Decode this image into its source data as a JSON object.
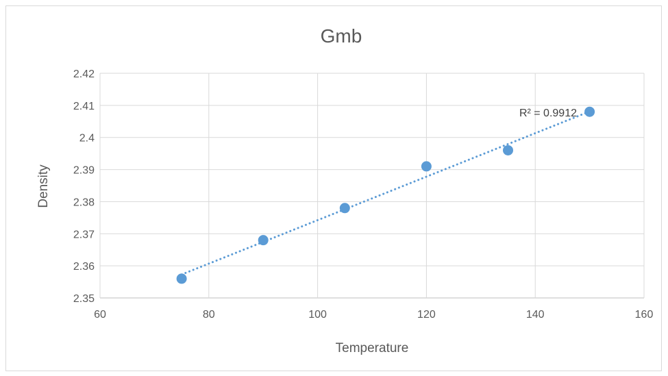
{
  "chart_data": {
    "type": "scatter",
    "title": "Gmb",
    "xlabel": "Temperature",
    "ylabel": "Density",
    "xlim": [
      60,
      160
    ],
    "ylim": [
      2.35,
      2.42
    ],
    "xticks": [
      60,
      80,
      100,
      120,
      140,
      160
    ],
    "yticks": [
      2.35,
      2.36,
      2.37,
      2.38,
      2.39,
      2.4,
      2.41,
      2.42
    ],
    "xtick_labels": [
      "60",
      "80",
      "100",
      "120",
      "140",
      "160"
    ],
    "ytick_labels": [
      "2.35",
      "2.36",
      "2.37",
      "2.38",
      "2.39",
      "2.4",
      "2.41",
      "2.42"
    ],
    "grid": true,
    "legend": "none",
    "series": [
      {
        "x": [
          75,
          90,
          105,
          120,
          135,
          150
        ],
        "y": [
          2.356,
          2.368,
          2.378,
          2.391,
          2.396,
          2.408
        ],
        "color": "#5b9bd5"
      }
    ],
    "trendline": {
      "type": "linear",
      "x_range": [
        75,
        150
      ],
      "y_start": 2.3573,
      "y_end": 2.4081,
      "color": "#5b9bd5",
      "style": "dotted",
      "r2_label": "R² = 0.9912"
    }
  }
}
